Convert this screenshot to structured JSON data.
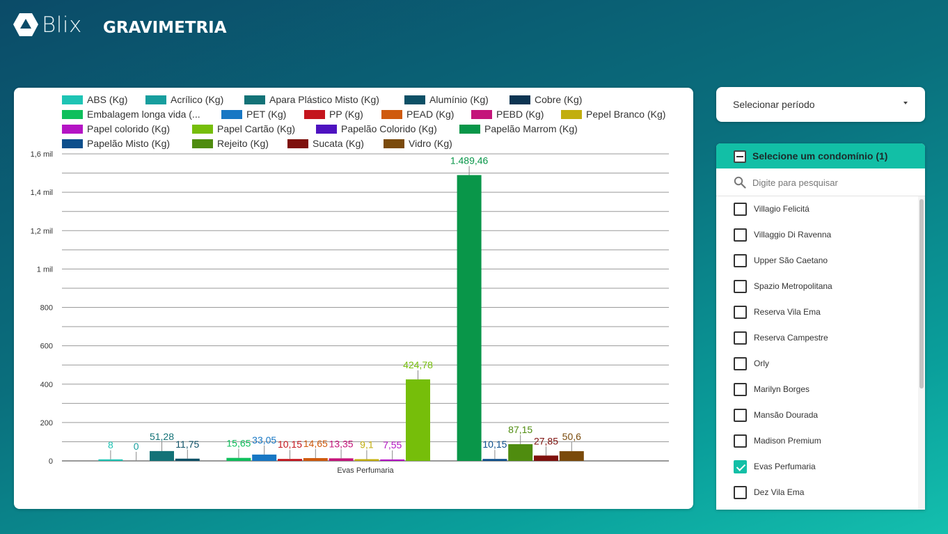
{
  "header": {
    "logo_text": "Blix",
    "title": "GRAVIMETRIA"
  },
  "period_selector": {
    "label": "Selecionar período",
    "icon": "caret-down-icon"
  },
  "condo_filter": {
    "header_label": "Selecione um condomínio (1)",
    "header_icon": "indeterminate-checkbox-icon",
    "search_placeholder": "Digite para pesquisar",
    "search_icon": "search-icon",
    "accent_color": "#12bfa6",
    "items": [
      {
        "label": "Villagio Felicitá",
        "checked": false
      },
      {
        "label": "Villaggio Di Ravenna",
        "checked": false
      },
      {
        "label": "Upper São Caetano",
        "checked": false
      },
      {
        "label": "Spazio Metropolitana",
        "checked": false
      },
      {
        "label": "Reserva Vila Ema",
        "checked": false
      },
      {
        "label": "Reserva Campestre",
        "checked": false
      },
      {
        "label": "Orly",
        "checked": false
      },
      {
        "label": "Marilyn Borges",
        "checked": false
      },
      {
        "label": "Mansão Dourada",
        "checked": false
      },
      {
        "label": "Madison Premium",
        "checked": false
      },
      {
        "label": "Evas Perfumaria",
        "checked": true
      },
      {
        "label": "Dez Vila Ema",
        "checked": false
      }
    ]
  },
  "chart_data": {
    "type": "bar",
    "categories": [
      "Evas Perfumaria"
    ],
    "y_ticks": [
      "0",
      "200",
      "400",
      "600",
      "800",
      "1 mil",
      "1,2 mil",
      "1,4 mil",
      "1,6 mil"
    ],
    "ylim": [
      0,
      1600
    ],
    "grid": true,
    "legend_position": "top",
    "series": [
      {
        "name": "ABS (Kg)",
        "color": "#1ec4b4",
        "value": 8,
        "label": "8"
      },
      {
        "name": "Acrílico (Kg)",
        "color": "#179e9e",
        "value": 0,
        "label": "0"
      },
      {
        "name": "Apara Plástico Misto (Kg)",
        "color": "#137277",
        "value": 51.28,
        "label": "51,28"
      },
      {
        "name": "Alumínio (Kg)",
        "color": "#0d5066",
        "value": 11.75,
        "label": "11,75"
      },
      {
        "name": "Cobre (Kg)",
        "color": "#0d3552",
        "value": null,
        "label": ""
      },
      {
        "name": "Embalagem longa vida (...",
        "color": "#0fbf5c",
        "value": 15.65,
        "label": "15,65"
      },
      {
        "name": "PET (Kg)",
        "color": "#1777c4",
        "value": 33.05,
        "label": "33,05"
      },
      {
        "name": "PP (Kg)",
        "color": "#c4151d",
        "value": 10.15,
        "label": "10,15"
      },
      {
        "name": "PEAD (Kg)",
        "color": "#cf5a0d",
        "value": 14.65,
        "label": "14,65"
      },
      {
        "name": "PEBD (Kg)",
        "color": "#c4147a",
        "value": 13.35,
        "label": "13,35"
      },
      {
        "name": "Pepel Branco (Kg)",
        "color": "#c2ae0e",
        "value": 9.1,
        "label": "9,1"
      },
      {
        "name": "Papel colorido (Kg)",
        "color": "#b414c4",
        "value": 7.55,
        "label": "7,55"
      },
      {
        "name": "Papel Cartão (Kg)",
        "color": "#76be0a",
        "value": 424.78,
        "label": "424,78"
      },
      {
        "name": "Papelão Colorido (Kg)",
        "color": "#4e12c0",
        "value": null,
        "label": ""
      },
      {
        "name": "Papelão Marrom (Kg)",
        "color": "#099649",
        "value": 1489.46,
        "label": "1.489,46"
      },
      {
        "name": "Papelão Misto (Kg)",
        "color": "#0d4f8c",
        "value": 10.15,
        "label": "10,15"
      },
      {
        "name": "Rejeito (Kg)",
        "color": "#4f8c0f",
        "value": 87.15,
        "label": "87,15"
      },
      {
        "name": "Sucata (Kg)",
        "color": "#7e100d",
        "value": 27.85,
        "label": "27,85"
      },
      {
        "name": "Vidro (Kg)",
        "color": "#7a4a0b",
        "value": 50.6,
        "label": "50,6"
      }
    ]
  }
}
